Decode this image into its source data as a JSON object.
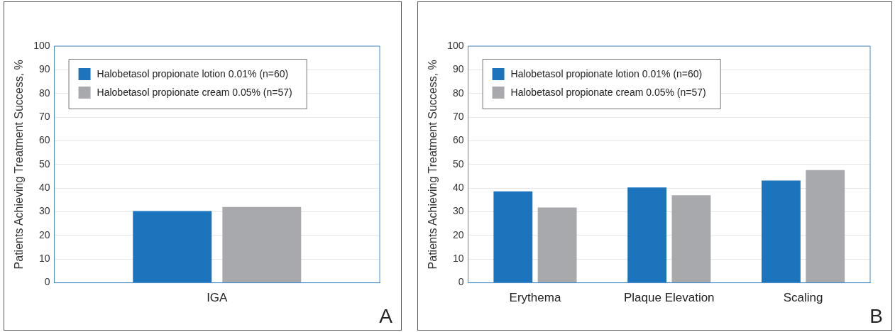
{
  "chart_data": [
    {
      "type": "bar",
      "categories": [
        "IGA"
      ],
      "series": [
        {
          "name": "Halobetasol propionate lotion 0.01% (n=60)",
          "color": "#1c75bc",
          "values": [
            30.3
          ]
        },
        {
          "name": "Halobetasol propionate cream 0.05% (n=57)",
          "color": "#a7a9ac",
          "values": [
            32.0
          ]
        }
      ],
      "ylabel": "Patients Achieving Treatment Success, %",
      "ylim": [
        0,
        100
      ],
      "yticks": [
        0,
        10,
        20,
        30,
        40,
        50,
        60,
        70,
        80,
        90,
        100
      ],
      "grid": "y",
      "legend": "top left",
      "annotations": [
        "A"
      ]
    },
    {
      "type": "bar",
      "categories": [
        "Erythema",
        "Plaque Elevation",
        "Scaling"
      ],
      "series": [
        {
          "name": "Halobetasol propionate lotion 0.01% (n=60)",
          "color": "#1c75bc",
          "values": [
            38.6,
            40.3,
            43.2
          ]
        },
        {
          "name": "Halobetasol propionate cream 0.05% (n=57)",
          "color": "#a7a9ac",
          "values": [
            31.8,
            37.0,
            47.6
          ]
        }
      ],
      "ylabel": "Patients Achieving Treatment Success, %",
      "ylim": [
        0,
        100
      ],
      "yticks": [
        0,
        10,
        20,
        30,
        40,
        50,
        60,
        70,
        80,
        90,
        100
      ],
      "grid": "y",
      "legend": "top left",
      "annotations": [
        "B"
      ]
    }
  ]
}
